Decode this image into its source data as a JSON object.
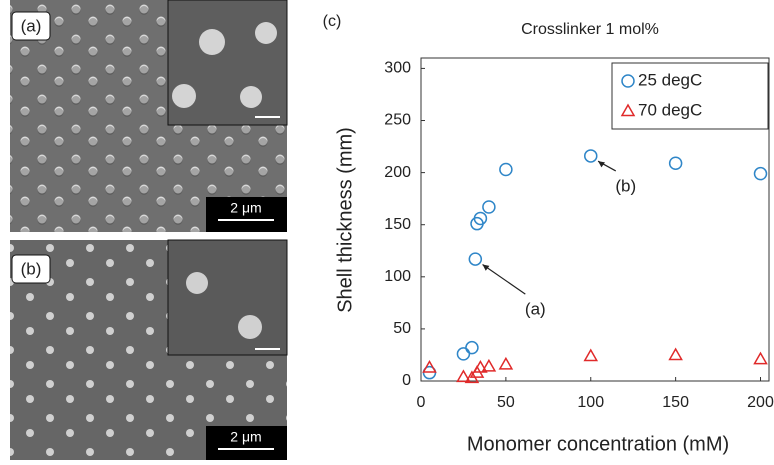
{
  "panels": [
    {
      "label": "(a)",
      "scale_bar": "2 μm"
    },
    {
      "label": "(b)",
      "scale_bar": "2 μm"
    }
  ],
  "chart_data": {
    "type": "scatter",
    "panel_label": "(c)",
    "title": "Crosslinker 1 mol%",
    "x_label": "Monomer concentration (mM)",
    "y_label": "Shell thickness (mm)",
    "xlim": [
      0,
      205
    ],
    "ylim": [
      0,
      310
    ],
    "xticks": [
      0,
      50,
      100,
      150,
      200
    ],
    "yticks": [
      0,
      50,
      100,
      150,
      200,
      250,
      300
    ],
    "grid": false,
    "legend": "upper right",
    "series": [
      {
        "name": "25 degC",
        "marker": "circle",
        "color": "#2f86c8",
        "x": [
          5,
          25,
          30,
          32,
          33,
          35,
          40,
          50,
          100,
          150,
          200
        ],
        "values": [
          8,
          26,
          32,
          117,
          151,
          156,
          167,
          203,
          216,
          209,
          199
        ]
      },
      {
        "name": "70 degC",
        "marker": "triangle",
        "color": "#e02a2a",
        "x": [
          5,
          25,
          30,
          33,
          35,
          40,
          50,
          100,
          150,
          200
        ],
        "values": [
          13,
          4,
          3,
          8,
          13,
          14,
          16,
          24,
          25,
          21
        ]
      }
    ],
    "annotations": [
      "(a)",
      "(b)"
    ]
  }
}
